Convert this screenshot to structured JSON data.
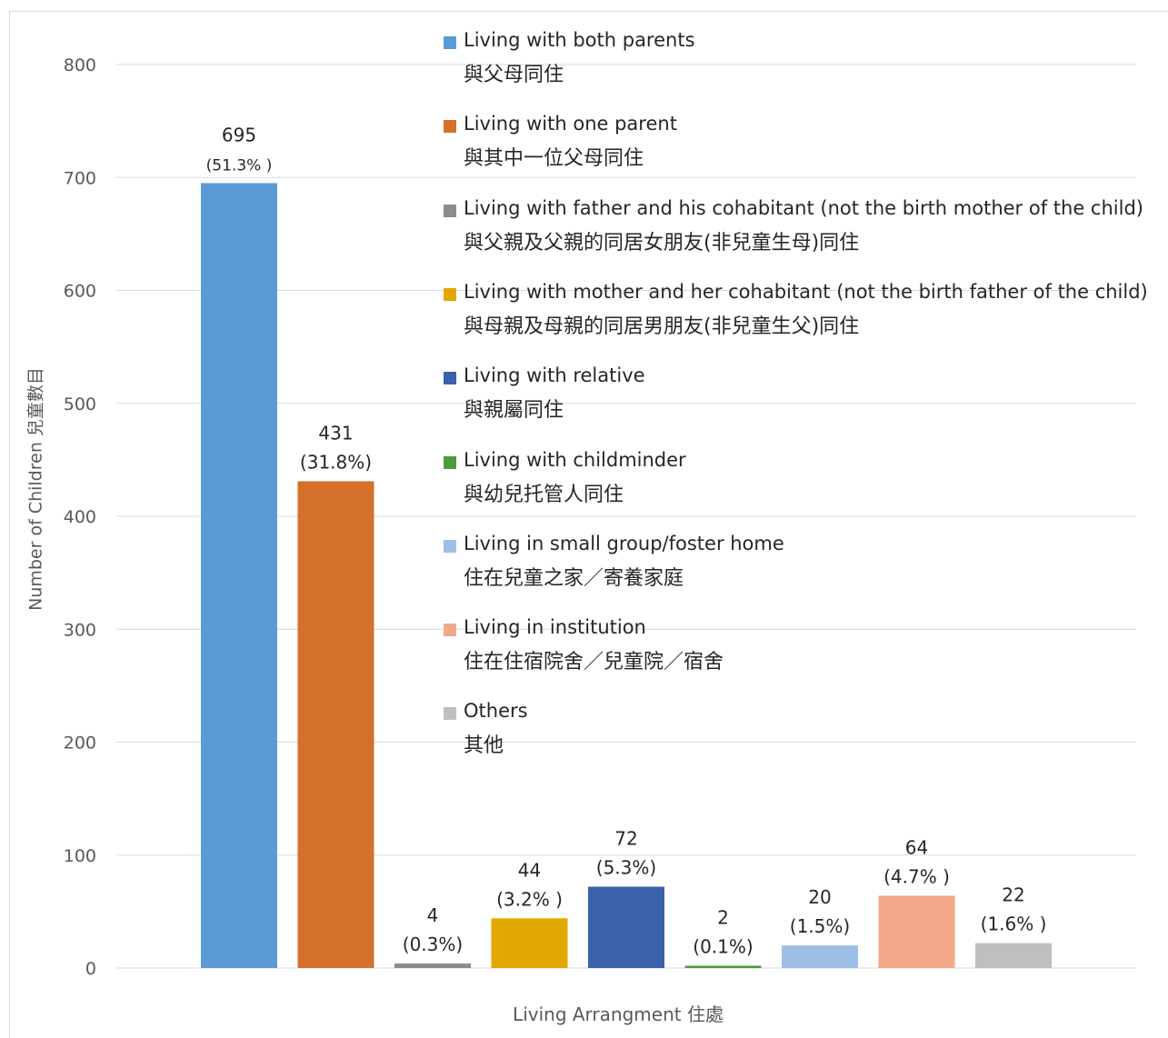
{
  "chart_data": {
    "type": "bar",
    "title": "",
    "xlabel": "Living Arrangment 住處",
    "ylabel": "Number of Children 兒童數目",
    "ylim": [
      0,
      800
    ],
    "yticks": [
      0,
      100,
      200,
      300,
      400,
      500,
      600,
      700,
      800
    ],
    "grid": true,
    "legend_position": "top-right",
    "categories": [
      "Living with both parents",
      "Living with one parent",
      "Living with father and his cohabitant (not the birth mother of the child)",
      "Living with mother and her cohabitant (not the birth father of the child)",
      "Living with relative",
      "Living with childminder",
      "Living in small group/foster home",
      "Living in institution",
      "Others"
    ],
    "categories_zh": [
      "與父母同住",
      "與其中一位父母同住",
      "與父親及父親的同居女朋友(非兒童生母)同住",
      "與母親及母親的同居男朋友(非兒童生父)同住",
      "與親屬同住",
      "與幼兒托管人同住",
      "住在兒童之家／寄養家庭",
      "住在住宿院舍／兒童院／宿舍",
      "其他"
    ],
    "values": [
      695,
      431,
      4,
      44,
      72,
      2,
      20,
      64,
      22
    ],
    "percent_labels": [
      "(51.3% )",
      "(31.8%)",
      "(0.3%)",
      "(3.2% )",
      "(5.3%)",
      "(0.1%)",
      "(1.5%)",
      "(4.7% )",
      "(1.6% )"
    ],
    "colors": [
      "#5b9bd5",
      "#d4702a",
      "#8c8c8c",
      "#e2a700",
      "#3a62aa",
      "#4e9a3a",
      "#9ec0e6",
      "#f1a98a",
      "#bfbfbf"
    ]
  }
}
